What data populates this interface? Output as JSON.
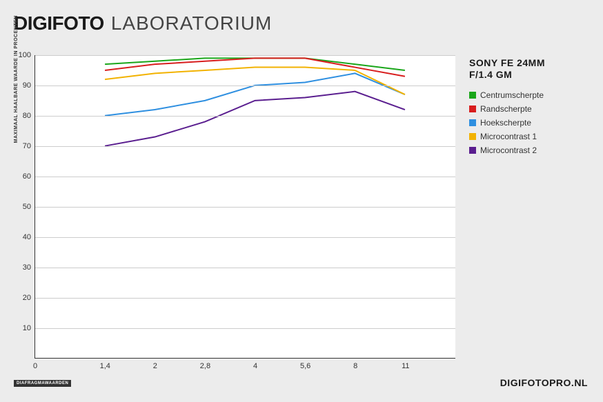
{
  "header": {
    "brand": "DIGIFOTO",
    "lab": "LABORATORIUM"
  },
  "footer": {
    "site": "DIGIFOTOPRO.NL"
  },
  "legend": {
    "title_line1": "SONY FE 24MM",
    "title_line2": "F/1.4 GM"
  },
  "yaxis": {
    "label": "MAXIMAAL HAALBARE WAARDE IN PROCENTEN"
  },
  "xaxis": {
    "badge": "DIAFRAGMAWAARDEN"
  },
  "chart": {
    "type": "line",
    "background_color": "#ffffff",
    "page_bg": "#ececec",
    "grid_color": "#cccccc",
    "axis_color": "#333333",
    "ylim": [
      0,
      100
    ],
    "yticks": [
      10,
      20,
      30,
      40,
      50,
      60,
      70,
      80,
      90,
      100
    ],
    "yticks_text": [
      "10",
      "20",
      "30",
      "40",
      "50",
      "60",
      "70",
      "80",
      "90",
      "100"
    ],
    "x_categories": [
      "0",
      "1,4",
      "2",
      "2,8",
      "4",
      "5,6",
      "8",
      "11"
    ],
    "x_positions": [
      0,
      0.166,
      0.285,
      0.404,
      0.523,
      0.642,
      0.761,
      0.88
    ],
    "data_x_indices": [
      1,
      2,
      3,
      4,
      5,
      6,
      7
    ],
    "line_width": 2,
    "title_fontsize": 14,
    "legend_fontsize": 12,
    "tick_fontsize": 11,
    "series": [
      {
        "name": "Centrumscherpte",
        "color": "#1aa61a",
        "values": [
          97,
          98,
          99,
          99,
          99,
          97,
          95
        ]
      },
      {
        "name": "Randscherpte",
        "color": "#d81e1e",
        "values": [
          95,
          97,
          98,
          99,
          99,
          96,
          93
        ]
      },
      {
        "name": "Hoekscherpte",
        "color": "#2e8fe0",
        "values": [
          80,
          82,
          85,
          90,
          91,
          94,
          87
        ]
      },
      {
        "name": "Microcontrast 1",
        "color": "#f2b200",
        "values": [
          92,
          94,
          95,
          96,
          96,
          95,
          87
        ]
      },
      {
        "name": "Microcontrast 2",
        "color": "#5a1e8f",
        "values": [
          70,
          73,
          78,
          85,
          86,
          88,
          82
        ]
      }
    ]
  }
}
